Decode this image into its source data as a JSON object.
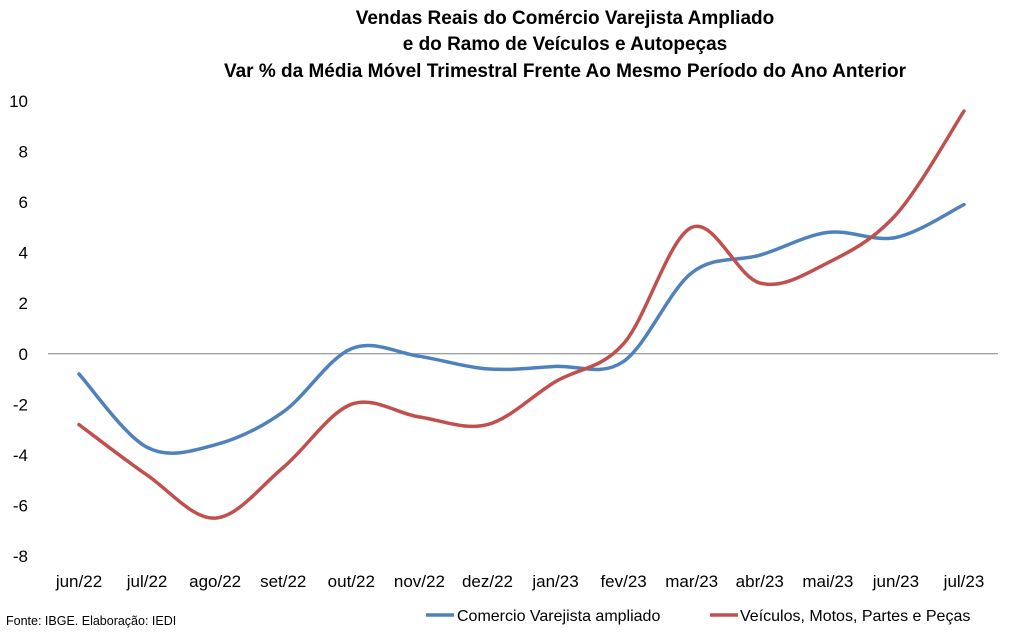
{
  "chart_data": {
    "type": "line",
    "title_lines": [
      "Vendas Reais do Comércio Varejista Ampliado",
      "e do Ramo de Veículos e Autopeças",
      "Var % da Média Móvel Trimestral Frente Ao Mesmo Período do Ano Anterior"
    ],
    "categories": [
      "jun/22",
      "jul/22",
      "ago/22",
      "set/22",
      "out/22",
      "nov/22",
      "dez/22",
      "jan/23",
      "fev/23",
      "mar/23",
      "abr/23",
      "mai/23",
      "jun/23",
      "jul/23"
    ],
    "ylim": [
      -8,
      10
    ],
    "yticks": [
      "10",
      "8",
      "6",
      "4",
      "2",
      "0",
      "-2",
      "-4",
      "-6",
      "-8"
    ],
    "grid": false,
    "legend_position": "bottom-right",
    "series": [
      {
        "name": "Comercio Varejista ampliado",
        "color": "#4F81BD",
        "values": [
          -0.8,
          -3.7,
          -3.6,
          -2.3,
          0.2,
          -0.1,
          -0.6,
          -0.5,
          -0.3,
          3.2,
          3.9,
          4.8,
          4.6,
          5.9
        ]
      },
      {
        "name": "Veículos, Motos, Partes e Peças",
        "color": "#C0504D",
        "values": [
          -2.8,
          -4.8,
          -6.5,
          -4.5,
          -2.0,
          -2.5,
          -2.8,
          -1.1,
          0.4,
          5.0,
          2.8,
          3.6,
          5.5,
          9.6
        ]
      }
    ]
  },
  "source": "Fonte: IBGE. Elaboração: IEDI"
}
